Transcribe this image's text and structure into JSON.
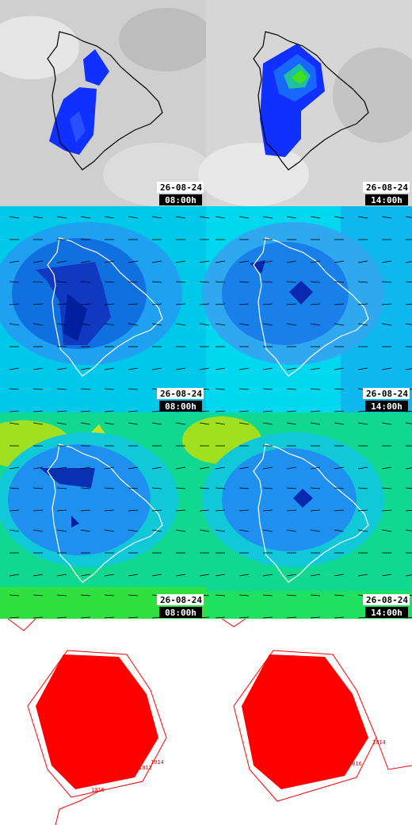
{
  "panels": [
    {
      "date": "26-08-24",
      "time": "08:00h"
    },
    {
      "date": "26-08-24",
      "time": "14:00h"
    },
    {
      "date": "26-08-24",
      "time": "08:00h"
    },
    {
      "date": "26-08-24",
      "time": "14:00h"
    },
    {
      "date": "26-08-24",
      "time": "08:00h"
    },
    {
      "date": "26-08-24",
      "time": "14:00h"
    }
  ],
  "contour_labels": [
    "1012",
    "1014",
    "1010",
    "1016",
    "1014"
  ]
}
